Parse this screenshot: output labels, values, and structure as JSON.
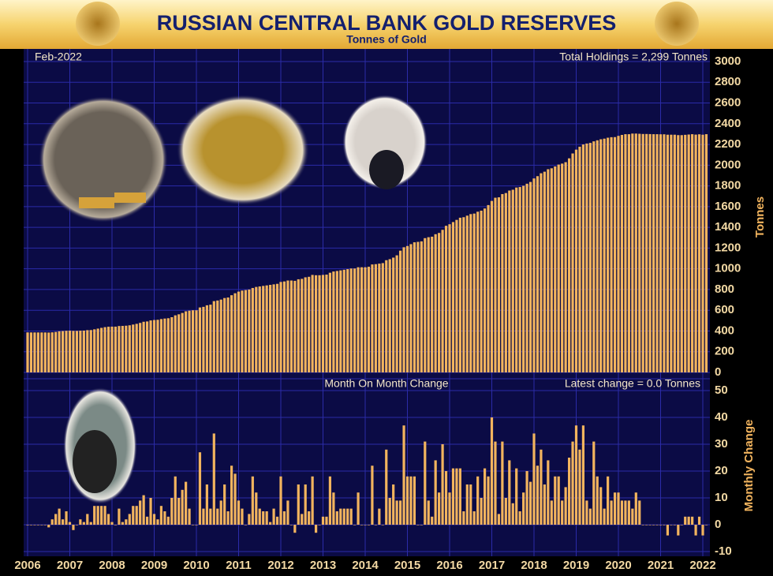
{
  "title": "RUSSIAN CENTRAL BANK GOLD RESERVES",
  "subtitle": "Tonnes of Gold",
  "chart_data": [
    {
      "type": "bar",
      "date_label": "Feb-2022",
      "annotation": "Total Holdings = 2,299 Tonnes",
      "y_label": "Tonnes",
      "color": "#f2b45e",
      "grid": true,
      "ylim": [
        0,
        3000
      ],
      "yticks": [
        0,
        200,
        400,
        600,
        800,
        1000,
        1200,
        1400,
        1600,
        1800,
        2000,
        2200,
        2400,
        2600,
        2800,
        3000
      ],
      "values": [
        386,
        386,
        386,
        386,
        386,
        386,
        385,
        387,
        391,
        397,
        399,
        402,
        403,
        401,
        401,
        403,
        404,
        408,
        409,
        416,
        423,
        430,
        437,
        441,
        442,
        442,
        448,
        449,
        451,
        455,
        462,
        469,
        478,
        489,
        492,
        502,
        506,
        508,
        515,
        520,
        523,
        533,
        551,
        561,
        574,
        590,
        596,
        600,
        600,
        627,
        633,
        648,
        654,
        688,
        694,
        703,
        718,
        723,
        745,
        764,
        780,
        790,
        795,
        800,
        815,
        825,
        830,
        835,
        840,
        845,
        850,
        855,
        873,
        878,
        887,
        887,
        884,
        899,
        903,
        918,
        923,
        941,
        938,
        938,
        941,
        944,
        962,
        974,
        979,
        985,
        991,
        997,
        1003,
        1003,
        1015,
        1015,
        1015,
        1020,
        1042,
        1045,
        1050,
        1055,
        1083,
        1093,
        1108,
        1130,
        1175,
        1208,
        1220,
        1238,
        1256,
        1260,
        1265,
        1296,
        1305,
        1310,
        1334,
        1346,
        1376,
        1415,
        1430,
        1451,
        1472,
        1493,
        1498,
        1513,
        1528,
        1533,
        1551,
        1561,
        1582,
        1615,
        1655,
        1686,
        1690,
        1721,
        1731,
        1755,
        1763,
        1784,
        1789,
        1801,
        1821,
        1838,
        1872,
        1894,
        1922,
        1937,
        1961,
        1970,
        1988,
        2006,
        2015,
        2029,
        2066,
        2113,
        2150,
        2178,
        2200,
        2209,
        2215,
        2230,
        2240,
        2250,
        2256,
        2265,
        2270,
        2271,
        2283,
        2292,
        2299,
        2299,
        2305,
        2305,
        2303,
        2301,
        2301,
        2300,
        2299,
        2299,
        2298,
        2298,
        2294,
        2294,
        2294,
        2290,
        2290,
        2293,
        2296,
        2299,
        2295,
        2298,
        2294,
        2299
      ]
    },
    {
      "type": "bar",
      "title": "Month On Month Change",
      "annotation": "Latest change = 0.0 Tonnes",
      "y_label": "Monthly Change",
      "color": "#f2b45e",
      "grid": true,
      "ylim": [
        -10,
        50
      ],
      "yticks": [
        -10,
        0,
        10,
        20,
        30,
        40,
        50
      ],
      "categories": [
        "2006",
        null,
        null,
        null,
        null,
        null,
        null,
        null,
        null,
        null,
        null,
        null,
        "2007",
        null,
        null,
        null,
        null,
        null,
        null,
        null,
        null,
        null,
        null,
        null,
        "2008",
        null,
        null,
        null,
        null,
        null,
        null,
        null,
        null,
        null,
        null,
        null,
        "2009",
        null,
        null,
        null,
        null,
        null,
        null,
        null,
        null,
        null,
        null,
        null,
        "2010",
        null,
        null,
        null,
        null,
        null,
        null,
        null,
        null,
        null,
        null,
        null,
        "2011",
        null,
        null,
        null,
        null,
        null,
        null,
        null,
        null,
        null,
        null,
        null,
        "2012",
        null,
        null,
        null,
        null,
        null,
        null,
        null,
        null,
        null,
        null,
        null,
        "2013",
        null,
        null,
        null,
        null,
        null,
        null,
        null,
        null,
        null,
        null,
        null,
        "2014",
        null,
        null,
        null,
        null,
        null,
        null,
        null,
        null,
        null,
        null,
        null,
        "2015",
        null,
        null,
        null,
        null,
        null,
        null,
        null,
        null,
        null,
        null,
        null,
        "2016",
        null,
        null,
        null,
        null,
        null,
        null,
        null,
        null,
        null,
        null,
        null,
        "2017",
        null,
        null,
        null,
        null,
        null,
        null,
        null,
        null,
        null,
        null,
        null,
        "2018",
        null,
        null,
        null,
        null,
        null,
        null,
        null,
        null,
        null,
        null,
        null,
        "2019",
        null,
        null,
        null,
        null,
        null,
        null,
        null,
        null,
        null,
        null,
        null,
        "2020",
        null,
        null,
        null,
        null,
        null,
        null,
        null,
        null,
        null,
        null,
        null,
        "2021",
        null,
        null,
        null,
        null,
        null,
        null,
        null,
        null,
        null,
        null,
        null,
        "2022",
        null
      ],
      "values": [
        0,
        0,
        0,
        0,
        0,
        0,
        -1,
        2,
        4,
        6,
        2,
        5,
        1,
        -2,
        0,
        2,
        1,
        4,
        1,
        7,
        7,
        7,
        7,
        4,
        1,
        0,
        6,
        1,
        2,
        4,
        7,
        7,
        9,
        11,
        3,
        10,
        4,
        2,
        7,
        5,
        3,
        10,
        18,
        10,
        13,
        16,
        6,
        0,
        0,
        27,
        6,
        15,
        6,
        34,
        6,
        9,
        15,
        5,
        22,
        19,
        9,
        6,
        0,
        4,
        18,
        12,
        6,
        5,
        5,
        1,
        6,
        3,
        18,
        5,
        9,
        0,
        -3,
        15,
        4,
        15,
        5,
        18,
        -3,
        0,
        3,
        3,
        18,
        12,
        5,
        6,
        6,
        6,
        6,
        0,
        12,
        0,
        0,
        0,
        22,
        0,
        6,
        0,
        28,
        10,
        15,
        9,
        9,
        37,
        18,
        18,
        18,
        0,
        0,
        31,
        9,
        3,
        24,
        12,
        30,
        20,
        12,
        21,
        21,
        21,
        5,
        15,
        15,
        5,
        18,
        10,
        21,
        18,
        40,
        31,
        4,
        31,
        10,
        24,
        8,
        21,
        5,
        12,
        20,
        16,
        34,
        22,
        28,
        15,
        24,
        9,
        18,
        18,
        9,
        14,
        25,
        31,
        37,
        28,
        37,
        9,
        6,
        31,
        18,
        14,
        6,
        18,
        9,
        12,
        12,
        9,
        9,
        9,
        6,
        12,
        9,
        0,
        0,
        0,
        0,
        0,
        0,
        0,
        -4,
        0,
        0,
        -4,
        0,
        3,
        3,
        3,
        -4,
        3,
        -4,
        0
      ]
    }
  ]
}
